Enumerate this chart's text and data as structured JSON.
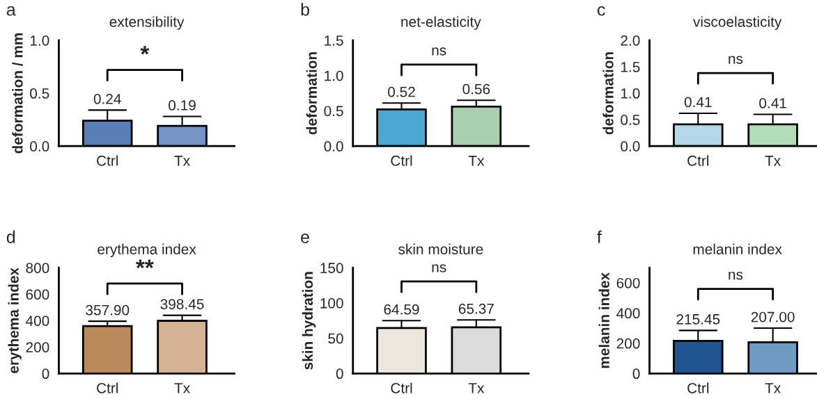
{
  "chart_data": [
    {
      "type": "bar",
      "title": "extensibility",
      "ylabel": "deformation / mm",
      "categories": [
        "Ctrl",
        "Tx"
      ],
      "values": [
        0.24,
        0.19
      ],
      "colors": [
        "#5b7db5",
        "#7394c4"
      ],
      "errors": [
        [
          0.24,
          0.34
        ],
        [
          0.19,
          0.28
        ]
      ],
      "value_labels": [
        "0.24",
        "0.19"
      ],
      "ylim": [
        0,
        1.0
      ],
      "yticks": [
        {
          "value": 0,
          "label": "0.0"
        },
        {
          "value": 0.5,
          "label": "0.5"
        },
        {
          "value": 1.0,
          "label": "1.0"
        }
      ],
      "annotations": [
        "a",
        "*"
      ],
      "grid": false,
      "legend": false
    },
    {
      "type": "bar",
      "title": "net-elasticity",
      "ylabel": "deformation",
      "categories": [
        "Ctrl",
        "Tx"
      ],
      "values": [
        0.52,
        0.56
      ],
      "colors": [
        "#4da8d6",
        "#a9cfae"
      ],
      "errors": [
        [
          0.52,
          0.61
        ],
        [
          0.56,
          0.65
        ]
      ],
      "value_labels": [
        "0.52",
        "0.56"
      ],
      "ylim": [
        0,
        1.5
      ],
      "yticks": [
        {
          "value": 0,
          "label": "0.0"
        },
        {
          "value": 0.5,
          "label": "0.5"
        },
        {
          "value": 1.0,
          "label": "1.0"
        },
        {
          "value": 1.5,
          "label": "1.5"
        }
      ],
      "annotations": [
        "b",
        "ns"
      ],
      "grid": false,
      "legend": false
    },
    {
      "type": "bar",
      "title": "viscoelasticity",
      "ylabel": "deformation",
      "categories": [
        "Ctrl",
        "Tx"
      ],
      "values": [
        0.41,
        0.41
      ],
      "colors": [
        "#b3d8e8",
        "#b3dcb8"
      ],
      "errors": [
        [
          0.41,
          0.62
        ],
        [
          0.41,
          0.6
        ]
      ],
      "value_labels": [
        "0.41",
        "0.41"
      ],
      "ylim": [
        0,
        2.0
      ],
      "yticks": [
        {
          "value": 0,
          "label": "0.0"
        },
        {
          "value": 0.5,
          "label": "0.5"
        },
        {
          "value": 1.0,
          "label": "1.0"
        },
        {
          "value": 1.5,
          "label": "1.5"
        },
        {
          "value": 2.0,
          "label": "2.0"
        }
      ],
      "annotations": [
        "c",
        "ns"
      ],
      "grid": false,
      "legend": false
    },
    {
      "type": "bar",
      "title": "erythema index",
      "ylabel": "erythema index",
      "categories": [
        "Ctrl",
        "Tx"
      ],
      "values": [
        357.9,
        398.45
      ],
      "colors": [
        "#b88a5c",
        "#d4b394"
      ],
      "errors": [
        [
          357.9,
          395
        ],
        [
          398.45,
          440
        ]
      ],
      "value_labels": [
        "357.90",
        "398.45"
      ],
      "ylim": [
        0,
        800
      ],
      "yticks": [
        0,
        200,
        400,
        600,
        800
      ],
      "annotations": [
        "d",
        "**"
      ],
      "grid": false,
      "legend": false
    },
    {
      "type": "bar",
      "title": "skin moisture",
      "ylabel": "skin hydration",
      "categories": [
        "Ctrl",
        "Tx"
      ],
      "values": [
        64.59,
        65.37
      ],
      "colors": [
        "#ede6dc",
        "#dcdcdc"
      ],
      "errors": [
        [
          64.59,
          75
        ],
        [
          65.37,
          76
        ]
      ],
      "value_labels": [
        "64.59",
        "65.37"
      ],
      "ylim": [
        0,
        150
      ],
      "yticks": [
        0,
        50,
        100,
        150
      ],
      "annotations": [
        "e",
        "ns"
      ],
      "grid": false,
      "legend": false
    },
    {
      "type": "bar",
      "title": "melanin index",
      "ylabel": "melanin index",
      "categories": [
        "Ctrl",
        "Tx"
      ],
      "values": [
        215.45,
        207.0
      ],
      "colors": [
        "#1f5490",
        "#6f9bc3"
      ],
      "errors": [
        [
          215.45,
          285
        ],
        [
          207.0,
          300
        ]
      ],
      "value_labels": [
        "215.45",
        "207.00"
      ],
      "ylim": [
        0,
        700
      ],
      "yticks": [
        0,
        200,
        400,
        600
      ],
      "annotations": [
        "f",
        "ns"
      ],
      "grid": false,
      "legend": false
    }
  ]
}
